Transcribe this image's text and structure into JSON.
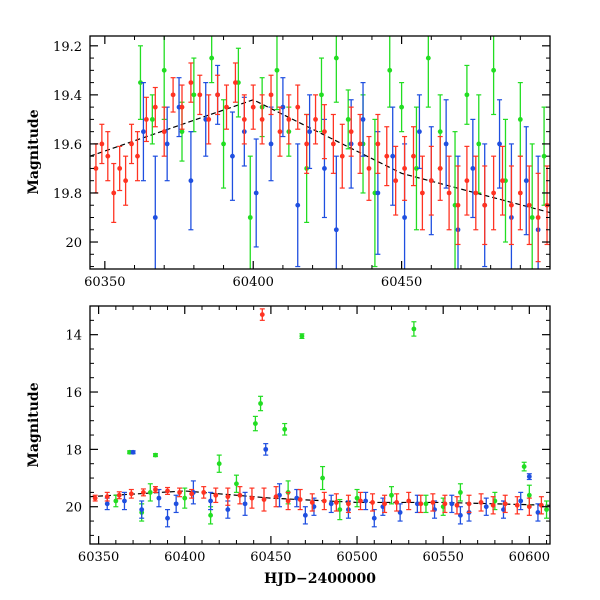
{
  "chart_data": [
    {
      "type": "scatter",
      "panel": "top",
      "ylabel": "Magnitude",
      "xlabel": "",
      "xlim": [
        60345,
        60500
      ],
      "ylim": [
        20.11,
        19.16
      ],
      "y_inverted": true,
      "x_ticks": [
        60350,
        60400,
        60450
      ],
      "x_tick_labels": [
        "60350",
        "60400",
        "60450"
      ],
      "y_ticks": [
        19.2,
        19.4,
        19.6,
        19.8,
        20
      ],
      "y_tick_labels": [
        "19.2",
        "19.4",
        "19.6",
        "19.8",
        "20"
      ],
      "grid": false,
      "legend": "none",
      "series_colors": [
        "#22dd22",
        "#1f4fe0",
        "#ff3322"
      ],
      "trend_line": {
        "x": [
          60345,
          60400,
          60450,
          60500
        ],
        "y": [
          19.65,
          19.42,
          19.72,
          19.88
        ]
      },
      "series": [
        {
          "color": "#22dd22",
          "x": [
            60362,
            60366,
            60370,
            60376,
            60380,
            60386,
            60390,
            60395,
            60399,
            60403,
            60408,
            60412,
            60418,
            60423,
            60428,
            60432,
            60437,
            60441,
            60446,
            60450,
            60455,
            60459,
            60463,
            60468,
            60472,
            60476,
            60481,
            60485,
            60490,
            60494,
            60498
          ],
          "y": [
            19.35,
            19.5,
            19.3,
            19.55,
            19.4,
            19.25,
            19.6,
            19.35,
            19.9,
            19.45,
            19.3,
            19.55,
            19.7,
            19.4,
            19.25,
            19.5,
            19.6,
            19.8,
            19.3,
            19.45,
            19.7,
            19.25,
            19.55,
            19.85,
            19.4,
            19.6,
            19.3,
            19.75,
            19.5,
            19.9,
            19.65
          ],
          "err": [
            0.15,
            0.1,
            0.2,
            0.12,
            0.15,
            0.1,
            0.18,
            0.14,
            0.25,
            0.12,
            0.16,
            0.1,
            0.22,
            0.15,
            0.18,
            0.12,
            0.2,
            0.3,
            0.15,
            0.1,
            0.25,
            0.2,
            0.15,
            0.3,
            0.12,
            0.2,
            0.18,
            0.25,
            0.15,
            0.3,
            0.2
          ]
        },
        {
          "color": "#1f4fe0",
          "x": [
            60363,
            60367,
            60371,
            60375,
            60379,
            60384,
            60388,
            60393,
            60397,
            60401,
            60406,
            60410,
            60415,
            60419,
            60424,
            60428,
            60433,
            60437,
            60442,
            60447,
            60451,
            60456,
            60460,
            60465,
            60469,
            60474,
            60478,
            60483,
            60487,
            60492,
            60496
          ],
          "y": [
            19.55,
            19.9,
            19.6,
            19.45,
            19.75,
            19.5,
            19.4,
            19.65,
            19.55,
            19.8,
            19.6,
            19.45,
            19.85,
            19.55,
            19.7,
            19.95,
            19.6,
            19.5,
            19.8,
            19.65,
            19.9,
            19.55,
            19.75,
            19.6,
            19.95,
            19.7,
            19.85,
            19.6,
            19.9,
            19.75,
            19.95
          ],
          "err": [
            0.2,
            0.25,
            0.15,
            0.12,
            0.2,
            0.15,
            0.12,
            0.18,
            0.14,
            0.22,
            0.15,
            0.12,
            0.25,
            0.15,
            0.2,
            0.3,
            0.18,
            0.15,
            0.25,
            0.2,
            0.3,
            0.15,
            0.22,
            0.18,
            0.3,
            0.2,
            0.25,
            0.18,
            0.3,
            0.22,
            0.3
          ]
        },
        {
          "color": "#ff3322",
          "x": [
            60347,
            60349,
            60351,
            60353,
            60355,
            60357,
            60359,
            60361,
            60364,
            60367,
            60370,
            60373,
            60376,
            60379,
            60382,
            60385,
            60388,
            60391,
            60394,
            60397,
            60400,
            60403,
            60406,
            60409,
            60412,
            60415,
            60418,
            60421,
            60424,
            60427,
            60430,
            60433,
            60436,
            60439,
            60442,
            60445,
            60448,
            60451,
            60454,
            60457,
            60460,
            60463,
            60466,
            60469,
            60472,
            60475,
            60478,
            60481,
            60484,
            60487,
            60490,
            60493,
            60496,
            60499
          ],
          "y": [
            19.7,
            19.6,
            19.65,
            19.8,
            19.7,
            19.75,
            19.6,
            19.65,
            19.5,
            19.45,
            19.55,
            19.4,
            19.45,
            19.35,
            19.4,
            19.5,
            19.4,
            19.45,
            19.35,
            19.5,
            19.45,
            19.5,
            19.4,
            19.55,
            19.5,
            19.45,
            19.6,
            19.5,
            19.55,
            19.6,
            19.65,
            19.55,
            19.6,
            19.7,
            19.6,
            19.65,
            19.75,
            19.7,
            19.65,
            19.8,
            19.75,
            19.7,
            19.8,
            19.85,
            19.75,
            19.8,
            19.85,
            19.8,
            19.75,
            19.85,
            19.8,
            19.85,
            19.9,
            19.85
          ],
          "err": [
            0.1,
            0.08,
            0.1,
            0.12,
            0.09,
            0.1,
            0.08,
            0.1,
            0.09,
            0.08,
            0.1,
            0.07,
            0.09,
            0.08,
            0.08,
            0.1,
            0.08,
            0.09,
            0.08,
            0.1,
            0.09,
            0.1,
            0.08,
            0.1,
            0.1,
            0.09,
            0.12,
            0.1,
            0.11,
            0.12,
            0.13,
            0.1,
            0.12,
            0.13,
            0.12,
            0.12,
            0.14,
            0.13,
            0.12,
            0.15,
            0.14,
            0.13,
            0.15,
            0.16,
            0.14,
            0.15,
            0.16,
            0.15,
            0.14,
            0.16,
            0.15,
            0.16,
            0.18,
            0.16
          ]
        }
      ]
    },
    {
      "type": "scatter",
      "panel": "bottom",
      "ylabel": "Magnitude",
      "xlabel": "HJD−2400000",
      "xlim": [
        60345,
        60612
      ],
      "ylim": [
        21.3,
        13.0
      ],
      "y_inverted": true,
      "x_ticks": [
        60350,
        60400,
        60450,
        60500,
        60550,
        60600
      ],
      "x_tick_labels": [
        "60350",
        "60400",
        "60450",
        "60500",
        "60550",
        "60600"
      ],
      "y_ticks": [
        14,
        16,
        18,
        20
      ],
      "y_tick_labels": [
        "14",
        "16",
        "18",
        "20"
      ],
      "grid": false,
      "legend": "none",
      "series_colors": [
        "#22dd22",
        "#1f4fe0",
        "#ff3322"
      ],
      "trend_line": {
        "x": [
          60345,
          60400,
          60450,
          60500,
          60550,
          60612
        ],
        "y": [
          19.65,
          19.45,
          19.7,
          19.85,
          19.85,
          19.95
        ]
      },
      "series": [
        {
          "color": "#22dd22",
          "x": [
            60368,
            60383,
            60441,
            60444,
            60458,
            60468,
            60533,
            60597,
            60360,
            60380,
            60400,
            60420,
            60430,
            60460,
            60480,
            60500,
            60520,
            60540,
            60560,
            60580,
            60600,
            60610,
            60375,
            60415,
            60490,
            60550
          ],
          "y": [
            18.1,
            18.2,
            17.1,
            16.4,
            17.3,
            14.05,
            13.8,
            18.6,
            19.8,
            19.5,
            19.7,
            18.5,
            19.2,
            19.5,
            19.0,
            19.7,
            19.6,
            19.9,
            19.5,
            19.8,
            19.6,
            20.1,
            20.2,
            20.3,
            20.1,
            20.0
          ],
          "err": [
            0.05,
            0.05,
            0.25,
            0.25,
            0.2,
            0.08,
            0.25,
            0.15,
            0.2,
            0.3,
            0.35,
            0.3,
            0.3,
            0.4,
            0.4,
            0.3,
            0.3,
            0.3,
            0.3,
            0.3,
            0.35,
            0.3,
            0.3,
            0.3,
            0.35,
            0.3
          ]
        },
        {
          "color": "#1f4fe0",
          "x": [
            60370,
            60447,
            60600,
            60355,
            60365,
            60375,
            60385,
            60395,
            60405,
            60415,
            60425,
            60435,
            60455,
            60465,
            60475,
            60485,
            60495,
            60505,
            60515,
            60525,
            60535,
            60545,
            60555,
            60565,
            60575,
            60585,
            60595,
            60605,
            60390,
            60470,
            60510,
            60560
          ],
          "y": [
            18.1,
            18.0,
            18.95,
            19.9,
            19.8,
            20.1,
            19.7,
            19.9,
            19.5,
            19.8,
            20.1,
            19.9,
            19.6,
            19.7,
            20.0,
            19.9,
            20.1,
            19.8,
            20.0,
            20.2,
            19.9,
            20.1,
            19.9,
            20.2,
            20.0,
            20.1,
            19.8,
            20.2,
            20.4,
            20.3,
            20.4,
            20.3
          ],
          "err": [
            0.05,
            0.2,
            0.1,
            0.2,
            0.3,
            0.3,
            0.3,
            0.3,
            0.4,
            0.3,
            0.3,
            0.4,
            0.4,
            0.3,
            0.3,
            0.3,
            0.3,
            0.3,
            0.3,
            0.3,
            0.3,
            0.3,
            0.3,
            0.3,
            0.3,
            0.3,
            0.3,
            0.3,
            0.3,
            0.3,
            0.3,
            0.3
          ]
        },
        {
          "color": "#ff3322",
          "x": [
            60445,
            60348,
            60355,
            60362,
            60369,
            60376,
            60383,
            60390,
            60397,
            60404,
            60411,
            60418,
            60425,
            60432,
            60439,
            60446,
            60453,
            60460,
            60467,
            60474,
            60481,
            60488,
            60495,
            60502,
            60509,
            60516,
            60523,
            60530,
            60537,
            60544,
            60551,
            60558,
            60565,
            60572,
            60579,
            60586,
            60593,
            60600,
            60607
          ],
          "y": [
            13.3,
            19.7,
            19.65,
            19.6,
            19.55,
            19.5,
            19.4,
            19.45,
            19.5,
            19.55,
            19.5,
            19.6,
            19.65,
            19.6,
            19.7,
            19.75,
            19.65,
            19.8,
            19.75,
            19.85,
            19.8,
            19.85,
            19.9,
            19.8,
            19.85,
            19.9,
            19.85,
            19.8,
            19.9,
            19.85,
            19.9,
            19.95,
            19.9,
            19.85,
            19.95,
            19.9,
            19.95,
            20.0,
            19.95
          ],
          "err": [
            0.2,
            0.1,
            0.15,
            0.12,
            0.15,
            0.12,
            0.1,
            0.12,
            0.15,
            0.15,
            0.2,
            0.25,
            0.3,
            0.3,
            0.35,
            0.4,
            0.35,
            0.3,
            0.35,
            0.3,
            0.3,
            0.3,
            0.3,
            0.3,
            0.3,
            0.3,
            0.3,
            0.3,
            0.3,
            0.3,
            0.3,
            0.3,
            0.3,
            0.3,
            0.3,
            0.3,
            0.3,
            0.3,
            0.3
          ]
        }
      ]
    }
  ]
}
